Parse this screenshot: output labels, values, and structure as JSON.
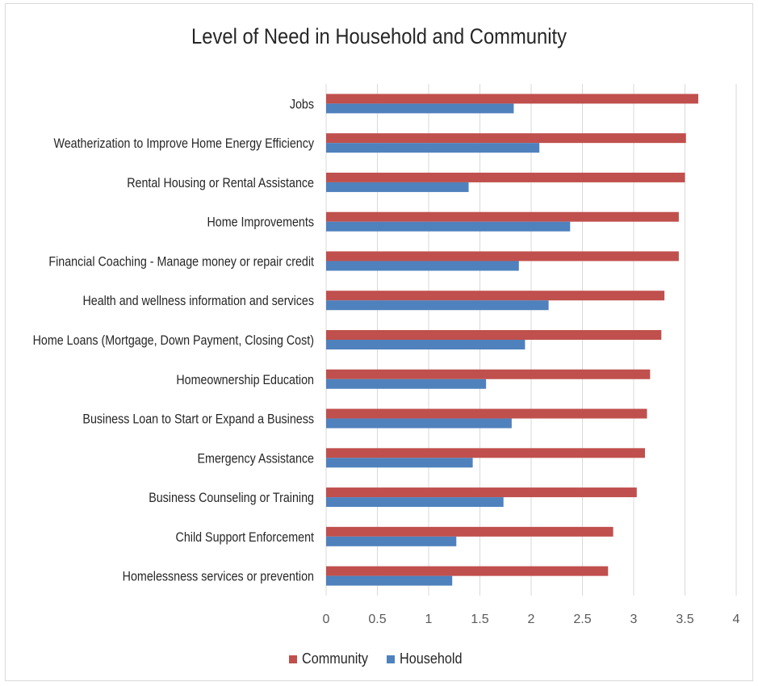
{
  "chart_data": {
    "type": "bar",
    "orientation": "horizontal",
    "title": "Level of Need in Household and Community",
    "categories": [
      "Jobs",
      "Weatherization to Improve Home Energy Efficiency",
      "Rental Housing or Rental Assistance",
      "Home Improvements",
      "Financial Coaching - Manage money or repair credit",
      "Health and wellness information and services",
      "Home Loans (Mortgage, Down Payment, Closing Cost)",
      "Homeownership Education",
      "Business Loan to Start or Expand a Business",
      "Emergency Assistance",
      "Business Counseling or Training",
      "Child Support Enforcement",
      "Homelessness services or prevention"
    ],
    "series": [
      {
        "name": "Community",
        "color": "#c0504d",
        "values": [
          3.63,
          3.51,
          3.5,
          3.44,
          3.44,
          3.3,
          3.27,
          3.16,
          3.13,
          3.11,
          3.03,
          2.8,
          2.75
        ]
      },
      {
        "name": "Household",
        "color": "#4f81bd",
        "values": [
          1.83,
          2.08,
          1.39,
          2.38,
          1.88,
          2.17,
          1.94,
          1.56,
          1.81,
          1.43,
          1.73,
          1.27,
          1.23
        ]
      }
    ],
    "xlim": [
      0,
      4
    ],
    "xticks": [
      "0",
      "0.5",
      "1",
      "1.5",
      "2",
      "2.5",
      "3",
      "3.5",
      "4"
    ],
    "xlabel": "",
    "ylabel": "",
    "grid": "vertical",
    "legend": "bottom"
  }
}
